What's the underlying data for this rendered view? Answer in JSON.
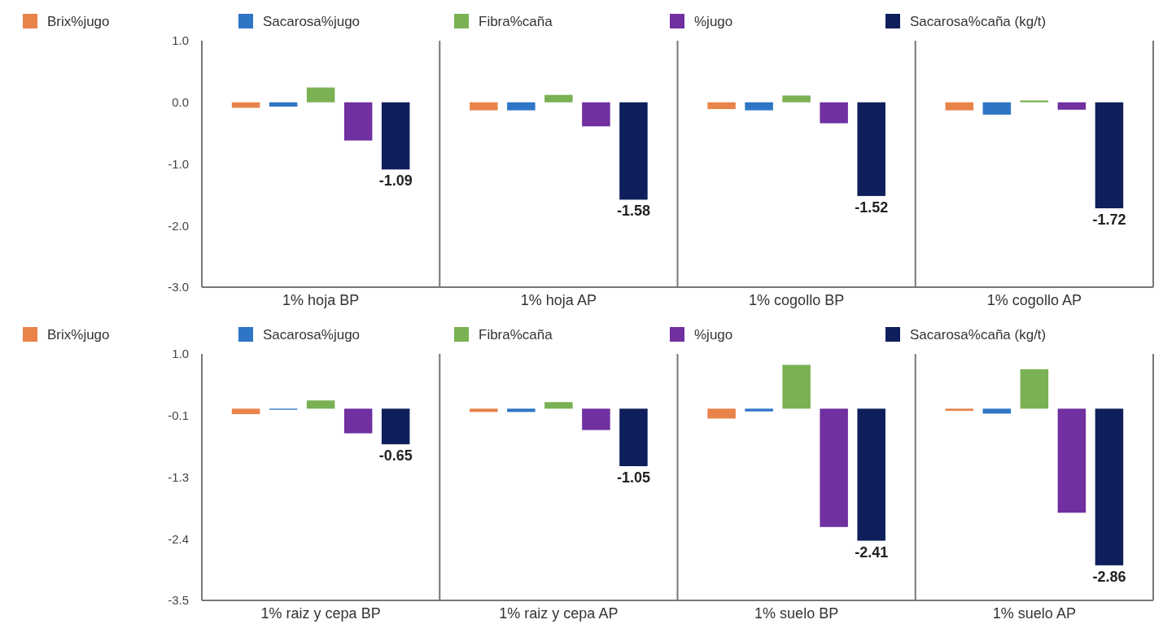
{
  "chart_data": [
    {
      "type": "bar",
      "categories": [
        "1% hoja BP",
        "1% hoja AP",
        "1% cogollo BP",
        "1% cogollo AP"
      ],
      "series": [
        {
          "name": "Brix%jugo",
          "color": "#e8844a",
          "values": [
            -0.09,
            -0.13,
            -0.11,
            -0.13
          ]
        },
        {
          "name": "Sacarosa%jugo",
          "color": "#2e75c6",
          "values": [
            -0.07,
            -0.13,
            -0.13,
            -0.2
          ]
        },
        {
          "name": "Fibra%caña",
          "color": "#79b153",
          "values": [
            0.24,
            0.12,
            0.11,
            0.03
          ]
        },
        {
          "name": "%jugo",
          "color": "#7030a0",
          "values": [
            -0.62,
            -0.39,
            -0.34,
            -0.12
          ]
        },
        {
          "name": "Sacarosa%caña (kg/t)",
          "color": "#0e1f5b",
          "values": [
            -1.09,
            -1.58,
            -1.52,
            -1.72
          ],
          "value_labels": [
            "-1.09",
            "-1.58",
            "-1.52",
            "-1.72"
          ]
        }
      ],
      "ylim": [
        -3,
        1
      ],
      "yticks": [
        {
          "value": 1,
          "label": "1.0"
        },
        {
          "value": 0,
          "label": "0.0"
        },
        {
          "value": -1,
          "label": "-1.0"
        },
        {
          "value": -2,
          "label": "-2.0"
        },
        {
          "value": -3,
          "label": "-3.0"
        }
      ],
      "grid": false,
      "legend": "top"
    },
    {
      "type": "bar",
      "categories": [
        "1% raiz y cepa BP",
        "1% raiz y cepa AP",
        "1% suelo BP",
        "1% suelo AP"
      ],
      "series": [
        {
          "name": "Brix%jugo",
          "color": "#e8844a",
          "values": [
            -0.1,
            -0.06,
            -0.18,
            -0.04
          ]
        },
        {
          "name": "Sacarosa%jugo",
          "color": "#2e75c6",
          "values": [
            -0.02,
            -0.06,
            -0.05,
            -0.09
          ]
        },
        {
          "name": "Fibra%caña",
          "color": "#79b153",
          "values": [
            0.15,
            0.12,
            0.8,
            0.72
          ]
        },
        {
          "name": "%jugo",
          "color": "#7030a0",
          "values": [
            -0.45,
            -0.39,
            -2.16,
            -1.9
          ]
        },
        {
          "name": "Sacarosa%caña (kg/t)",
          "color": "#0e1f5b",
          "values": [
            -0.65,
            -1.05,
            -2.41,
            -2.86
          ],
          "value_labels": [
            "-0.65",
            "-1.05",
            "-2.41",
            "-2.86"
          ]
        }
      ],
      "ylim": [
        -3.5,
        1
      ],
      "yticks": [
        {
          "value": 1,
          "label": "1.0"
        },
        {
          "value": -0.125,
          "label": "-0.1"
        },
        {
          "value": -1.25,
          "label": "-1.3"
        },
        {
          "value": -2.375,
          "label": "-2.4"
        },
        {
          "value": -3.5,
          "label": "-3.5"
        }
      ],
      "grid": false,
      "legend": "top"
    }
  ]
}
